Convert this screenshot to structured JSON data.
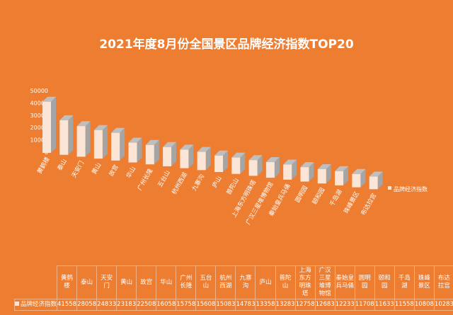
{
  "chart_data": {
    "type": "bar",
    "title": "2021年度8月份全国景区品牌经济指数TOP20",
    "categories": [
      "黄鹤楼",
      "泰山",
      "天安门",
      "黄山",
      "故宫",
      "华山",
      "广州长隆",
      "五台山",
      "杭州西湖",
      "九寨沟",
      "庐山",
      "普陀山",
      "上海东方明珠塔",
      "广汉三星堆博物馆",
      "秦始皇兵马俑",
      "圆明园",
      "颐和园",
      "千岛湖",
      "珠峰景区",
      "布达拉宫"
    ],
    "series": [
      {
        "name": "品牌经济指数",
        "values": [
          41558,
          28058,
          24833,
          23183,
          22508,
          16058,
          15758,
          15608,
          15083,
          14783,
          13358,
          13283,
          12758,
          12683,
          12233,
          11708,
          11633,
          11558,
          10808,
          10283
        ]
      }
    ],
    "yticks": [
      "0",
      "10000",
      "20000",
      "30000",
      "40000",
      "50000"
    ],
    "ylim": [
      0,
      50000
    ],
    "legend": "right",
    "data_table": true,
    "colors": {
      "background": "#ED7D31",
      "bar_front": "#FBE5D6",
      "bar_side": "#A5A5A5"
    }
  }
}
